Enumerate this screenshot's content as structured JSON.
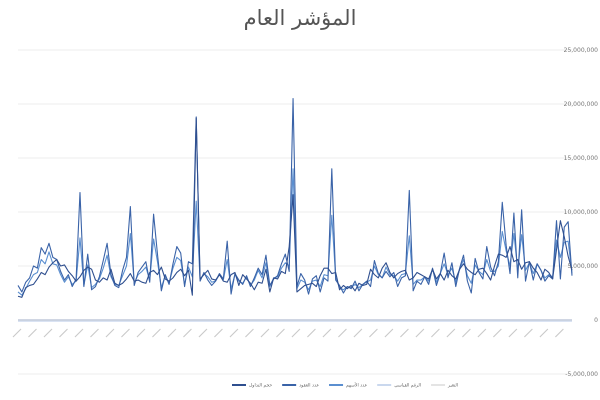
{
  "chart_data": {
    "type": "line",
    "title": "المؤشر العام",
    "ylim": [
      -5000000,
      25000000
    ],
    "yticks": [
      "-5,000,000",
      "0",
      "5,000,000",
      "10,000,000",
      "15,000,000",
      "20,000,000",
      "25,000,000"
    ],
    "ytick_values": [
      -5000000,
      0,
      5000000,
      10000000,
      15000000,
      20000000,
      25000000
    ],
    "grid": true,
    "legend_position": "bottom",
    "x_count": 144,
    "series": [
      {
        "name": "حجم التداول",
        "color": "#2f4f8f",
        "values": [
          2200000,
          2100000,
          3000000,
          3200000,
          3300000,
          3800000,
          4400000,
          4200000,
          4900000,
          5300000,
          5600000,
          5000000,
          5100000,
          4500000,
          4100000,
          3600000,
          4000000,
          4600000,
          4900000,
          4700000,
          3700000,
          3500000,
          3900000,
          3700000,
          4700000,
          3400000,
          3200000,
          3400000,
          3800000,
          4300000,
          3600000,
          3700000,
          3500000,
          3400000,
          4400000,
          4600000,
          4200000,
          4900000,
          3800000,
          3600000,
          3900000,
          4400000,
          4700000,
          4100000,
          4600000,
          2300000,
          18700000,
          3800000,
          4200000,
          4600000,
          3800000,
          3700000,
          4200000,
          3600000,
          3500000,
          4200000,
          4400000,
          3200000,
          4200000,
          3800000,
          3400000,
          2800000,
          3500000,
          3400000,
          4700000,
          2600000,
          3900000,
          3800000,
          4500000,
          4300000,
          6800000,
          11600000,
          2600000,
          2900000,
          3200000,
          3300000,
          3400000,
          3100000,
          4100000,
          4800000,
          4800000,
          4300000,
          4400000,
          2800000,
          3200000,
          2900000,
          3200000,
          2700000,
          3400000,
          3200000,
          3300000,
          4700000,
          4200000,
          3900000,
          4800000,
          5300000,
          4400000,
          3900000,
          4300000,
          4500000,
          4600000,
          3700000,
          3900000,
          4400000,
          4200000,
          4000000,
          3800000,
          4700000,
          3800000,
          4300000,
          3700000,
          4600000,
          4100000,
          3800000,
          4700000,
          5200000,
          4700000,
          4400000,
          4200000,
          4700000,
          4800000,
          4300000,
          3700000,
          5000000,
          6100000,
          6000000,
          5800000,
          6800000,
          5400000,
          5600000,
          4700000,
          5300000,
          5400000,
          4800000,
          4400000,
          3700000,
          4700000,
          4400000,
          3800000,
          6500000,
          9200000,
          7700000,
          5900000,
          4600000
        ]
      },
      {
        "name": "عدد العقود",
        "color": "#3a63a8",
        "values": [
          3200000,
          2600000,
          3500000,
          3900000,
          5000000,
          4800000,
          6700000,
          6100000,
          7100000,
          5800000,
          5600000,
          4500000,
          3700000,
          4200000,
          3100000,
          3800000,
          11800000,
          3100000,
          6100000,
          2800000,
          3100000,
          4000000,
          5500000,
          7100000,
          4200000,
          3200000,
          3000000,
          4600000,
          5800000,
          10500000,
          3200000,
          4400000,
          4900000,
          5400000,
          3500000,
          9800000,
          6100000,
          2700000,
          4200000,
          3300000,
          5200000,
          6800000,
          6200000,
          3100000,
          5400000,
          5200000,
          18800000,
          3600000,
          4400000,
          3700000,
          3200000,
          3600000,
          4300000,
          3800000,
          7300000,
          2400000,
          4300000,
          3700000,
          3300000,
          4100000,
          3100000,
          3900000,
          4800000,
          4200000,
          6000000,
          3200000,
          3800000,
          4100000,
          5200000,
          6100000,
          4500000,
          20500000,
          3100000,
          4300000,
          3700000,
          2400000,
          3800000,
          4100000,
          2600000,
          3900000,
          3600000,
          14000000,
          3700000,
          3200000,
          2500000,
          3100000,
          2900000,
          3600000,
          2700000,
          3300000,
          3600000,
          3100000,
          5500000,
          4300000,
          3900000,
          4500000,
          4000000,
          4400000,
          3100000,
          3900000,
          4100000,
          12000000,
          2700000,
          3600000,
          3300000,
          4000000,
          3300000,
          4800000,
          3200000,
          4300000,
          6200000,
          3900000,
          5300000,
          3100000,
          4800000,
          6000000,
          3600000,
          2500000,
          5700000,
          4400000,
          3800000,
          6800000,
          4900000,
          4100000,
          5400000,
          10900000,
          6900000,
          4300000,
          9900000,
          3900000,
          10200000,
          3600000,
          5400000,
          3700000,
          5200000,
          4600000,
          3600000,
          4100000,
          3800000,
          9200000,
          3800000,
          8600000,
          9100000,
          4100000
        ]
      },
      {
        "name": "عدد الأسهم",
        "color": "#5b8fd0",
        "values": [
          2600000,
          2300000,
          2900000,
          3600000,
          4200000,
          4400000,
          5600000,
          5200000,
          6300000,
          5200000,
          5100000,
          4200000,
          3500000,
          4000000,
          3300000,
          3600000,
          7600000,
          3200000,
          5100000,
          3000000,
          3300000,
          3800000,
          4800000,
          6000000,
          4000000,
          3300000,
          3200000,
          4100000,
          5000000,
          8000000,
          3400000,
          4200000,
          4500000,
          4900000,
          3700000,
          7500000,
          5400000,
          3000000,
          4100000,
          3400000,
          4800000,
          5800000,
          5500000,
          3300000,
          4900000,
          4000000,
          11000000,
          3700000,
          4300000,
          4000000,
          3500000,
          3600000,
          4200000,
          3700000,
          5600000,
          2900000,
          4200000,
          3600000,
          3400000,
          4000000,
          3200000,
          3700000,
          4600000,
          3900000,
          5300000,
          3100000,
          3900000,
          4000000,
          4800000,
          5300000,
          5000000,
          14000000,
          2900000,
          3700000,
          3500000,
          2800000,
          3600000,
          3700000,
          3100000,
          4200000,
          4100000,
          9700000,
          3900000,
          3000000,
          2800000,
          3100000,
          3000000,
          3300000,
          3000000,
          3300000,
          3500000,
          3700000,
          5000000,
          4200000,
          3900000,
          4900000,
          4200000,
          4100000,
          3600000,
          4200000,
          4300000,
          7800000,
          3300000,
          3700000,
          3700000,
          4000000,
          3600000,
          4700000,
          3500000,
          4300000,
          5200000,
          4200000,
          4800000,
          3500000,
          4700000,
          5600000,
          4100000,
          3400000,
          5100000,
          4500000,
          4200000,
          5600000,
          4500000,
          4500000,
          5000000,
          8200000,
          6400000,
          5000000,
          8000000,
          4600000,
          7900000,
          4600000,
          5300000,
          4300000,
          5200000,
          4600000,
          3900000,
          4200000,
          4000000,
          7400000,
          5800000,
          7200000,
          7300000,
          4300000
        ]
      },
      {
        "name": "الرقم القياسي",
        "color": "#b4c7e7",
        "values": [
          -100000,
          -100000,
          -100000,
          -100000,
          -100000,
          -100000,
          -100000,
          -100000,
          -100000,
          -100000,
          -100000,
          -100000,
          -100000,
          -100000,
          -100000,
          -100000,
          -100000,
          -100000,
          -100000,
          -100000,
          -100000,
          -100000,
          -100000,
          -100000,
          -100000,
          -100000,
          -100000,
          -100000,
          -100000,
          -100000,
          -100000,
          -100000,
          -100000,
          -100000,
          -100000,
          -100000,
          -100000,
          -100000,
          -100000,
          -100000,
          -100000,
          -100000,
          -100000,
          -100000,
          -100000,
          -100000,
          -100000,
          -100000,
          -100000,
          -100000,
          -100000,
          -100000,
          -100000,
          -100000,
          -100000,
          -100000,
          -100000,
          -100000,
          -100000,
          -100000,
          -100000,
          -100000,
          -100000,
          -100000,
          -100000,
          -100000,
          -100000,
          -100000,
          -100000,
          -100000,
          -100000,
          -100000,
          -100000,
          -100000,
          -100000,
          -100000,
          -100000,
          -100000,
          -100000,
          -100000,
          -100000,
          -100000,
          -100000,
          -100000,
          -100000,
          -100000,
          -100000,
          -100000,
          -100000,
          -100000,
          -100000,
          -100000,
          -100000,
          -100000,
          -100000,
          -100000,
          -100000,
          -100000,
          -100000,
          -100000,
          -100000,
          -100000,
          -100000,
          -100000,
          -100000,
          -100000,
          -100000,
          -100000,
          -100000,
          -100000,
          -100000,
          -100000,
          -100000,
          -100000,
          -100000,
          -100000,
          -100000,
          -100000,
          -100000,
          -100000,
          -100000,
          -100000,
          -100000,
          -100000,
          -100000,
          -100000,
          -100000,
          -100000,
          -100000,
          -100000,
          -100000,
          -100000,
          -100000,
          -100000,
          -100000,
          -100000,
          -100000,
          -100000,
          -100000,
          -100000,
          -100000,
          -100000,
          -100000,
          -100000
        ]
      },
      {
        "name": "التغير",
        "color": "#d9d9d9",
        "values": [
          0,
          0,
          0,
          0,
          0,
          0,
          0,
          0,
          0,
          0,
          0,
          0,
          0,
          0,
          0,
          0,
          0,
          0,
          0,
          0,
          0,
          0,
          0,
          0,
          0,
          0,
          0,
          0,
          0,
          0,
          0,
          0,
          0,
          0,
          0,
          0,
          0,
          0,
          0,
          0,
          0,
          0,
          0,
          0,
          0,
          0,
          0,
          0,
          0,
          0,
          0,
          0,
          0,
          0,
          0,
          0,
          0,
          0,
          0,
          0,
          0,
          0,
          0,
          0,
          0,
          0,
          0,
          0,
          0,
          0,
          0,
          0,
          0,
          0,
          0,
          0,
          0,
          0,
          0,
          0,
          0,
          0,
          0,
          0,
          0,
          0,
          0,
          0,
          0,
          0,
          0,
          0,
          0,
          0,
          0,
          0,
          0,
          0,
          0,
          0,
          0,
          0,
          0,
          0,
          0,
          0,
          0,
          0,
          0,
          0,
          0,
          0,
          0,
          0,
          0,
          0,
          0,
          0,
          0,
          0,
          0,
          0,
          0,
          0,
          0,
          0,
          0,
          0,
          0,
          0,
          0,
          0,
          0,
          0,
          0,
          0,
          0,
          0,
          0,
          0,
          0,
          0,
          0,
          0
        ]
      }
    ]
  }
}
